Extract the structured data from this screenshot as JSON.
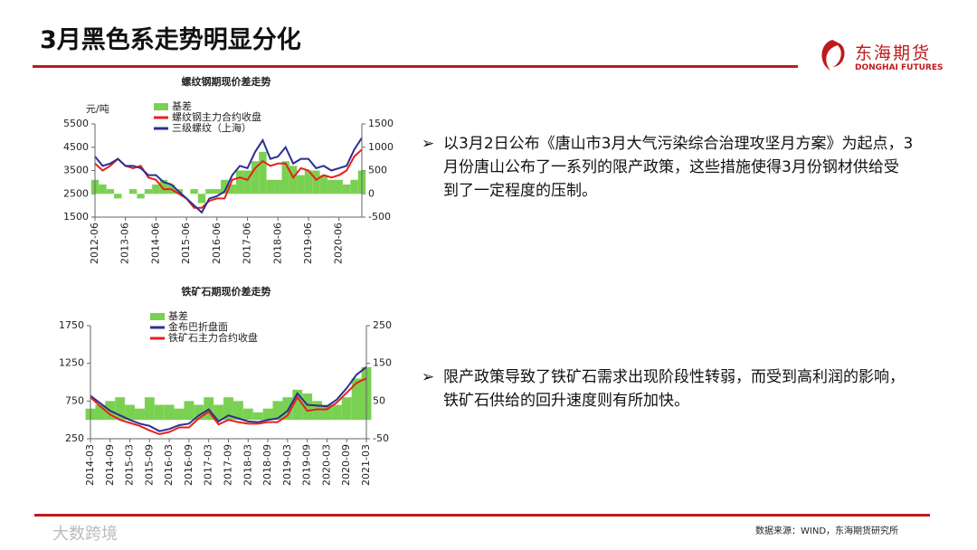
{
  "header": {
    "title": "3月黑色系走势明显分化"
  },
  "logo": {
    "name": "东海期货",
    "name_en": "DONGHAI FUTURES"
  },
  "bullets": [
    "以3月2日公布《唐山市3月大气污染综合治理攻坚月方案》为起点，3月份唐山公布了一系列的限产政策，这些措施使得3月份钢材供给受到了一定程度的压制。",
    "限产政策导致了铁矿石需求出现阶段性转弱，而受到高利润的影响，铁矿石供给的回升速度则有所加快。"
  ],
  "source": "数据来源：WIND，东海期货研究所",
  "watermark": "大数跨境",
  "chart_data": [
    {
      "type": "line",
      "title": "螺纹钢期现价差走势",
      "ylabel": "元/吨",
      "x": [
        "2012-06",
        "2012-09",
        "2012-12",
        "2013-03",
        "2013-06",
        "2013-09",
        "2013-12",
        "2014-03",
        "2014-06",
        "2014-09",
        "2014-12",
        "2015-03",
        "2015-06",
        "2015-09",
        "2015-12",
        "2016-03",
        "2016-06",
        "2016-09",
        "2016-12",
        "2017-03",
        "2017-06",
        "2017-09",
        "2017-12",
        "2018-03",
        "2018-06",
        "2018-09",
        "2018-12",
        "2019-03",
        "2019-06",
        "2019-09",
        "2019-12",
        "2020-03",
        "2020-06",
        "2020-09",
        "2020-12",
        "2021-03"
      ],
      "xlim": [
        "2012-06",
        "2021-03"
      ],
      "xticks": [
        "2012-06",
        "2013-06",
        "2014-06",
        "2015-06",
        "2016-06",
        "2017-06",
        "2018-06",
        "2019-06",
        "2020-06"
      ],
      "ylim": [
        1500,
        5500
      ],
      "yticks": [
        1500,
        2500,
        3500,
        4500,
        5500
      ],
      "y2lim": [
        -500,
        1500
      ],
      "y2ticks": [
        -500,
        0,
        500,
        1000,
        1500
      ],
      "series": [
        {
          "name": "基差",
          "type": "bar",
          "axis": "y2",
          "color": "#7ad151",
          "values": [
            300,
            200,
            100,
            -100,
            0,
            100,
            -100,
            100,
            200,
            300,
            200,
            100,
            0,
            100,
            -200,
            100,
            100,
            300,
            200,
            500,
            500,
            700,
            900,
            300,
            300,
            700,
            600,
            400,
            500,
            500,
            400,
            300,
            300,
            200,
            300,
            500
          ]
        },
        {
          "name": "螺纹钢主力合约收盘",
          "type": "line",
          "color": "#e8201c",
          "values": [
            3800,
            3500,
            3700,
            4000,
            3700,
            3600,
            3700,
            3200,
            3100,
            2700,
            2700,
            2500,
            2300,
            1900,
            1900,
            2200,
            2300,
            2300,
            3100,
            3200,
            3100,
            3600,
            3900,
            3700,
            3800,
            3800,
            3200,
            3600,
            3500,
            3100,
            3300,
            3200,
            3300,
            3500,
            4100,
            4400
          ]
        },
        {
          "name": "三级螺纹（上海）",
          "type": "line",
          "color": "#2b2f8f",
          "values": [
            4100,
            3700,
            3800,
            4000,
            3700,
            3700,
            3600,
            3300,
            3300,
            3000,
            2900,
            2600,
            2300,
            2000,
            1700,
            2300,
            2400,
            2600,
            3300,
            3700,
            3600,
            4300,
            4800,
            4000,
            4100,
            4500,
            3800,
            4000,
            4000,
            3600,
            3700,
            3500,
            3600,
            3700,
            4400,
            4900
          ]
        }
      ]
    },
    {
      "type": "line",
      "title": "铁矿石期现价差走势",
      "x": [
        "2014-03",
        "2014-06",
        "2014-09",
        "2014-12",
        "2015-03",
        "2015-06",
        "2015-09",
        "2015-12",
        "2016-03",
        "2016-06",
        "2016-09",
        "2016-12",
        "2017-03",
        "2017-06",
        "2017-09",
        "2017-12",
        "2018-03",
        "2018-06",
        "2018-09",
        "2018-12",
        "2019-03",
        "2019-06",
        "2019-09",
        "2019-12",
        "2020-03",
        "2020-06",
        "2020-09",
        "2020-12",
        "2021-03"
      ],
      "xlim": [
        "2014-03",
        "2021-03"
      ],
      "xticks": [
        "2014-03",
        "2014-09",
        "2015-03",
        "2015-09",
        "2016-03",
        "2016-09",
        "2017-03",
        "2017-09",
        "2018-03",
        "2018-09",
        "2019-03",
        "2019-09",
        "2020-03",
        "2020-09",
        "2021-03"
      ],
      "ylim": [
        250,
        1750
      ],
      "yticks": [
        250,
        750,
        1250,
        1750
      ],
      "y2lim": [
        -50,
        250
      ],
      "y2ticks": [
        -50,
        50,
        150,
        250
      ],
      "series": [
        {
          "name": "基差",
          "type": "bar",
          "axis": "y2",
          "color": "#7ad151",
          "values": [
            30,
            40,
            50,
            60,
            40,
            30,
            60,
            40,
            40,
            30,
            50,
            40,
            60,
            40,
            60,
            50,
            30,
            20,
            30,
            50,
            60,
            80,
            70,
            50,
            40,
            40,
            60,
            110,
            140
          ]
        },
        {
          "name": "金布巴折盘面",
          "type": "line",
          "color": "#2b2f8f",
          "values": [
            820,
            720,
            620,
            560,
            500,
            450,
            420,
            350,
            380,
            430,
            450,
            560,
            640,
            480,
            560,
            520,
            480,
            470,
            500,
            520,
            620,
            850,
            700,
            690,
            680,
            770,
            920,
            1100,
            1200
          ]
        },
        {
          "name": "铁矿石主力合约收盘",
          "type": "line",
          "color": "#e8201c",
          "values": [
            800,
            680,
            570,
            500,
            460,
            420,
            360,
            310,
            340,
            400,
            400,
            520,
            610,
            440,
            500,
            470,
            450,
            450,
            470,
            470,
            560,
            800,
            620,
            640,
            640,
            730,
            860,
            990,
            1050
          ]
        }
      ]
    }
  ]
}
